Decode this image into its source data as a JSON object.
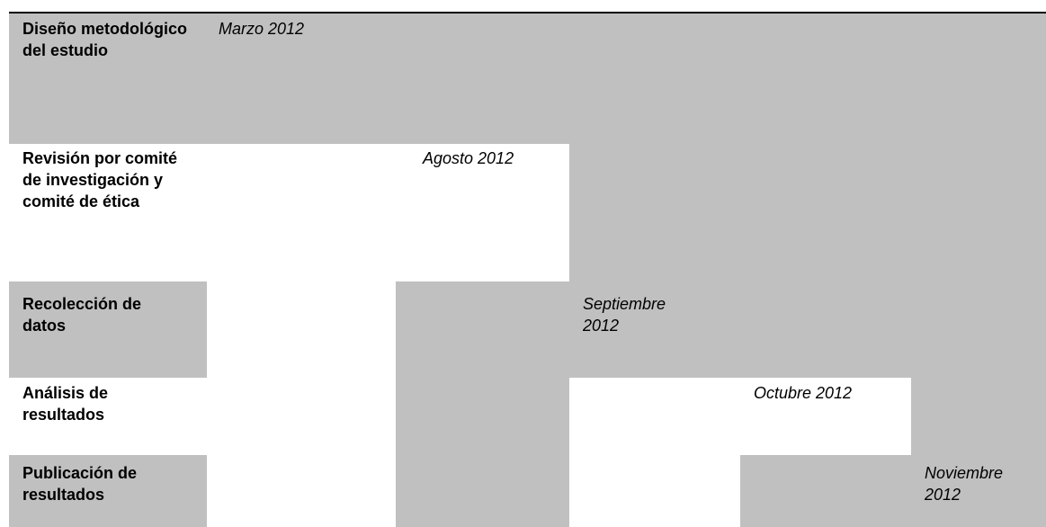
{
  "table": {
    "rows": [
      {
        "label": "Diseño metodológico del estudio",
        "date": "Marzo 2012"
      },
      {
        "label": "Revisión por comité de investigación y comité de ética",
        "date": "Agosto 2012"
      },
      {
        "label": "Recolección de datos",
        "date": "Septiembre 2012"
      },
      {
        "label": "Análisis de resultados",
        "date": "Octubre 2012"
      },
      {
        "label": "Publicación de resultados",
        "date": "Noviembre 2012"
      }
    ]
  }
}
